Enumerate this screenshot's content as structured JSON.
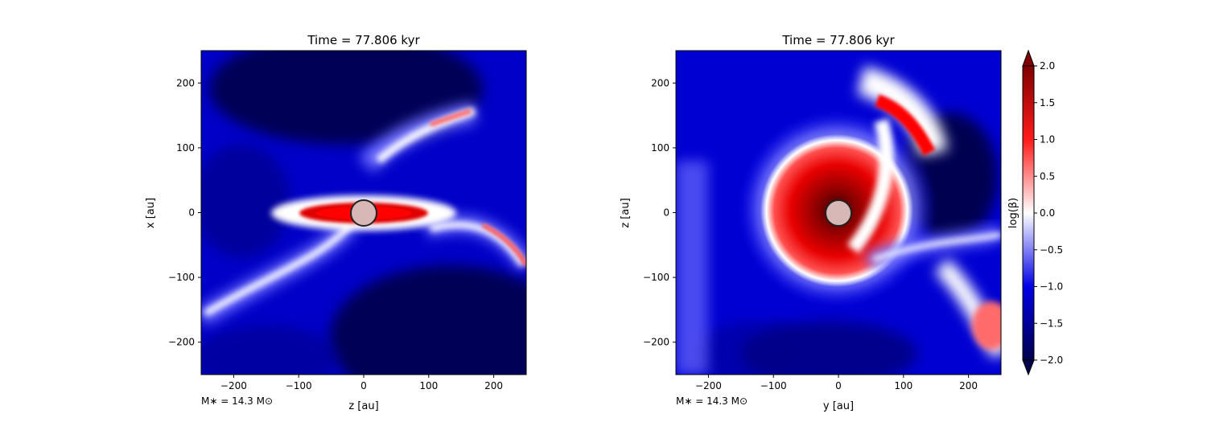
{
  "chart_data": [
    {
      "type": "heatmap",
      "title": "Time = 77.806 kyr",
      "xlabel": "z [au]",
      "ylabel": "x [au]",
      "xlim": [
        -250,
        250
      ],
      "ylim": [
        -250,
        250
      ],
      "xticks": [
        -200,
        -100,
        0,
        100,
        200
      ],
      "yticks": [
        -200,
        -100,
        0,
        100,
        200
      ],
      "xtick_labels": [
        "−200",
        "−100",
        "0",
        "100",
        "200"
      ],
      "ytick_labels": [
        "−200",
        "−100",
        "0",
        "100",
        "200"
      ],
      "annotation": "M∗ = 14.3 M⊙",
      "star": {
        "x": 0,
        "y": 0,
        "radius": 20
      },
      "features": [
        {
          "label": "disk midplane, log(β) ≈ 2",
          "x_range": [
            -100,
            90
          ],
          "y": 0
        },
        {
          "label": "upper-right filament",
          "from": [
            50,
            80
          ],
          "to": [
            170,
            150
          ]
        },
        {
          "label": "lower-left filament",
          "from": [
            -20,
            -20
          ],
          "to": [
            -240,
            -160
          ]
        },
        {
          "label": "right filament",
          "from": [
            100,
            -20
          ],
          "to": [
            250,
            -80
          ]
        }
      ]
    },
    {
      "type": "heatmap",
      "title": "Time = 77.806 kyr",
      "xlabel": "y [au]",
      "ylabel": "z [au]",
      "xlim": [
        -250,
        250
      ],
      "ylim": [
        -250,
        250
      ],
      "xticks": [
        -200,
        -100,
        0,
        100,
        200
      ],
      "yticks": [
        -200,
        -100,
        0,
        100,
        200
      ],
      "xtick_labels": [
        "−200",
        "−100",
        "0",
        "100",
        "200"
      ],
      "ytick_labels": [
        "−200",
        "−100",
        "0",
        "100",
        "200"
      ],
      "annotation": "M∗ = 14.3 M⊙",
      "star": {
        "x": 0,
        "y": 0,
        "radius": 20
      },
      "features": [
        {
          "label": "high-β ring around star, radius ≈ 110 au",
          "center": [
            0,
            0
          ]
        },
        {
          "label": "spiral arm",
          "from": [
            40,
            180
          ],
          "to": [
            130,
            80
          ]
        },
        {
          "label": "lower-right blob",
          "center": [
            230,
            -160
          ]
        }
      ],
      "colorbar": {
        "label": "log(β)",
        "range": [
          -2.0,
          2.0
        ],
        "ticks": [
          2.0,
          1.5,
          1.0,
          0.5,
          0.0,
          -0.5,
          -1.0,
          -1.5,
          -2.0
        ],
        "tick_labels": [
          "2.0",
          "1.5",
          "1.0",
          "0.5",
          "0.0",
          "−0.5",
          "−1.0",
          "−1.5",
          "−2.0"
        ],
        "extend": "both",
        "colormap": "seismic"
      }
    }
  ],
  "colors": {
    "deep_blue": "#00004c",
    "blue": "#0000e6",
    "white": "#ffffff",
    "red": "#e60000",
    "dark_red": "#800000",
    "star_fill": "#d8b7b7"
  }
}
